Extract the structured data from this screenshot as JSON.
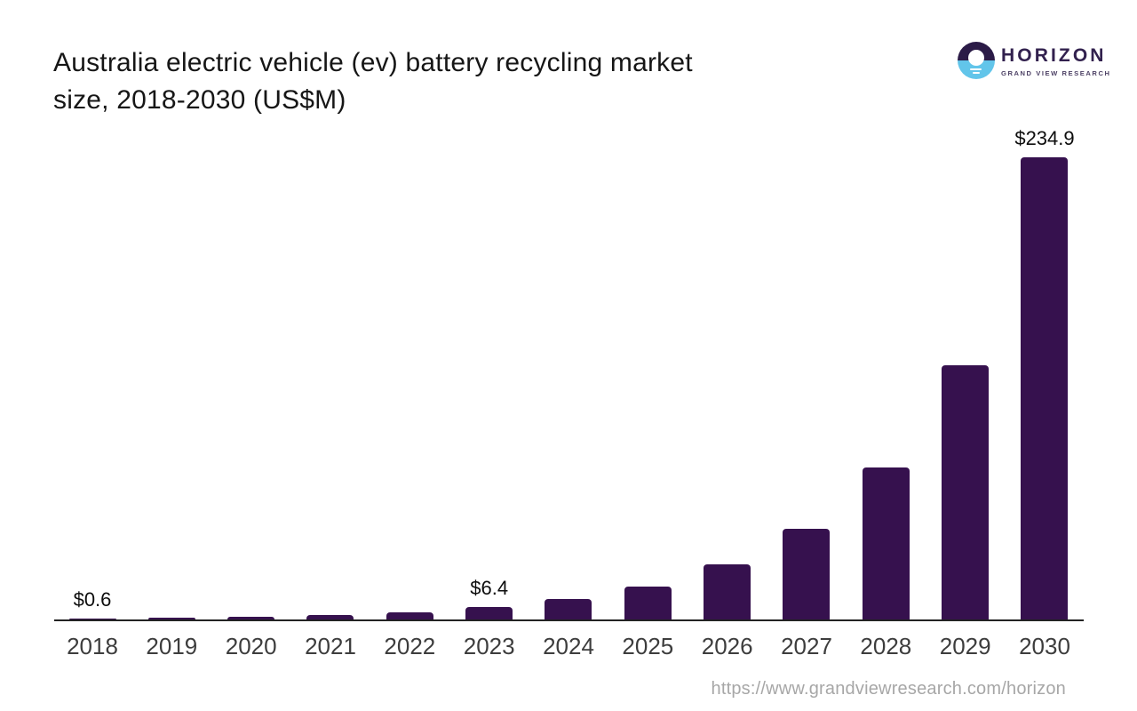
{
  "header": {
    "title_line1": "Australia electric vehicle (ev) battery recycling market",
    "title_line2": "size, 2018-2030 (US$M)"
  },
  "logo": {
    "brand": "HORIZON",
    "subtitle": "GRAND VIEW RESEARCH",
    "icon": "horizon-donut-sun-icon",
    "icon_colors": {
      "top_half": "#2b1b47",
      "bottom_half": "#62c5ea",
      "sun": "#ffffff"
    }
  },
  "footer": {
    "url": "https://www.grandviewresearch.com/horizon"
  },
  "colors": {
    "bar": "#36114e",
    "axis": "#232323",
    "tick_label": "#3d3d3d",
    "value_label": "#0d0d0d",
    "title": "#161616",
    "url": "#a7a7a7",
    "background": "#ffffff"
  },
  "chart_data": {
    "type": "bar",
    "title": "Australia electric vehicle (ev) battery recycling market size, 2018-2030 (US$M)",
    "unit": "US$M",
    "categories": [
      "2018",
      "2019",
      "2020",
      "2021",
      "2022",
      "2023",
      "2024",
      "2025",
      "2026",
      "2027",
      "2028",
      "2029",
      "2030"
    ],
    "values": [
      0.6,
      0.9,
      1.5,
      2.1,
      3.4,
      6.4,
      10.3,
      16.8,
      28.0,
      46.3,
      77.5,
      129.4,
      234.9
    ],
    "value_labels": {
      "2018": "$0.6",
      "2023": "$6.4",
      "2030": "$234.9"
    },
    "bar_color": "#36114e",
    "xlabel": "",
    "ylabel": "",
    "ylim": [
      0,
      240
    ],
    "grid": false,
    "legend": false,
    "y_axis_visible": false,
    "notes": "Only 2018, 2023 and 2030 carry data labels; other values estimated from bar heights"
  }
}
